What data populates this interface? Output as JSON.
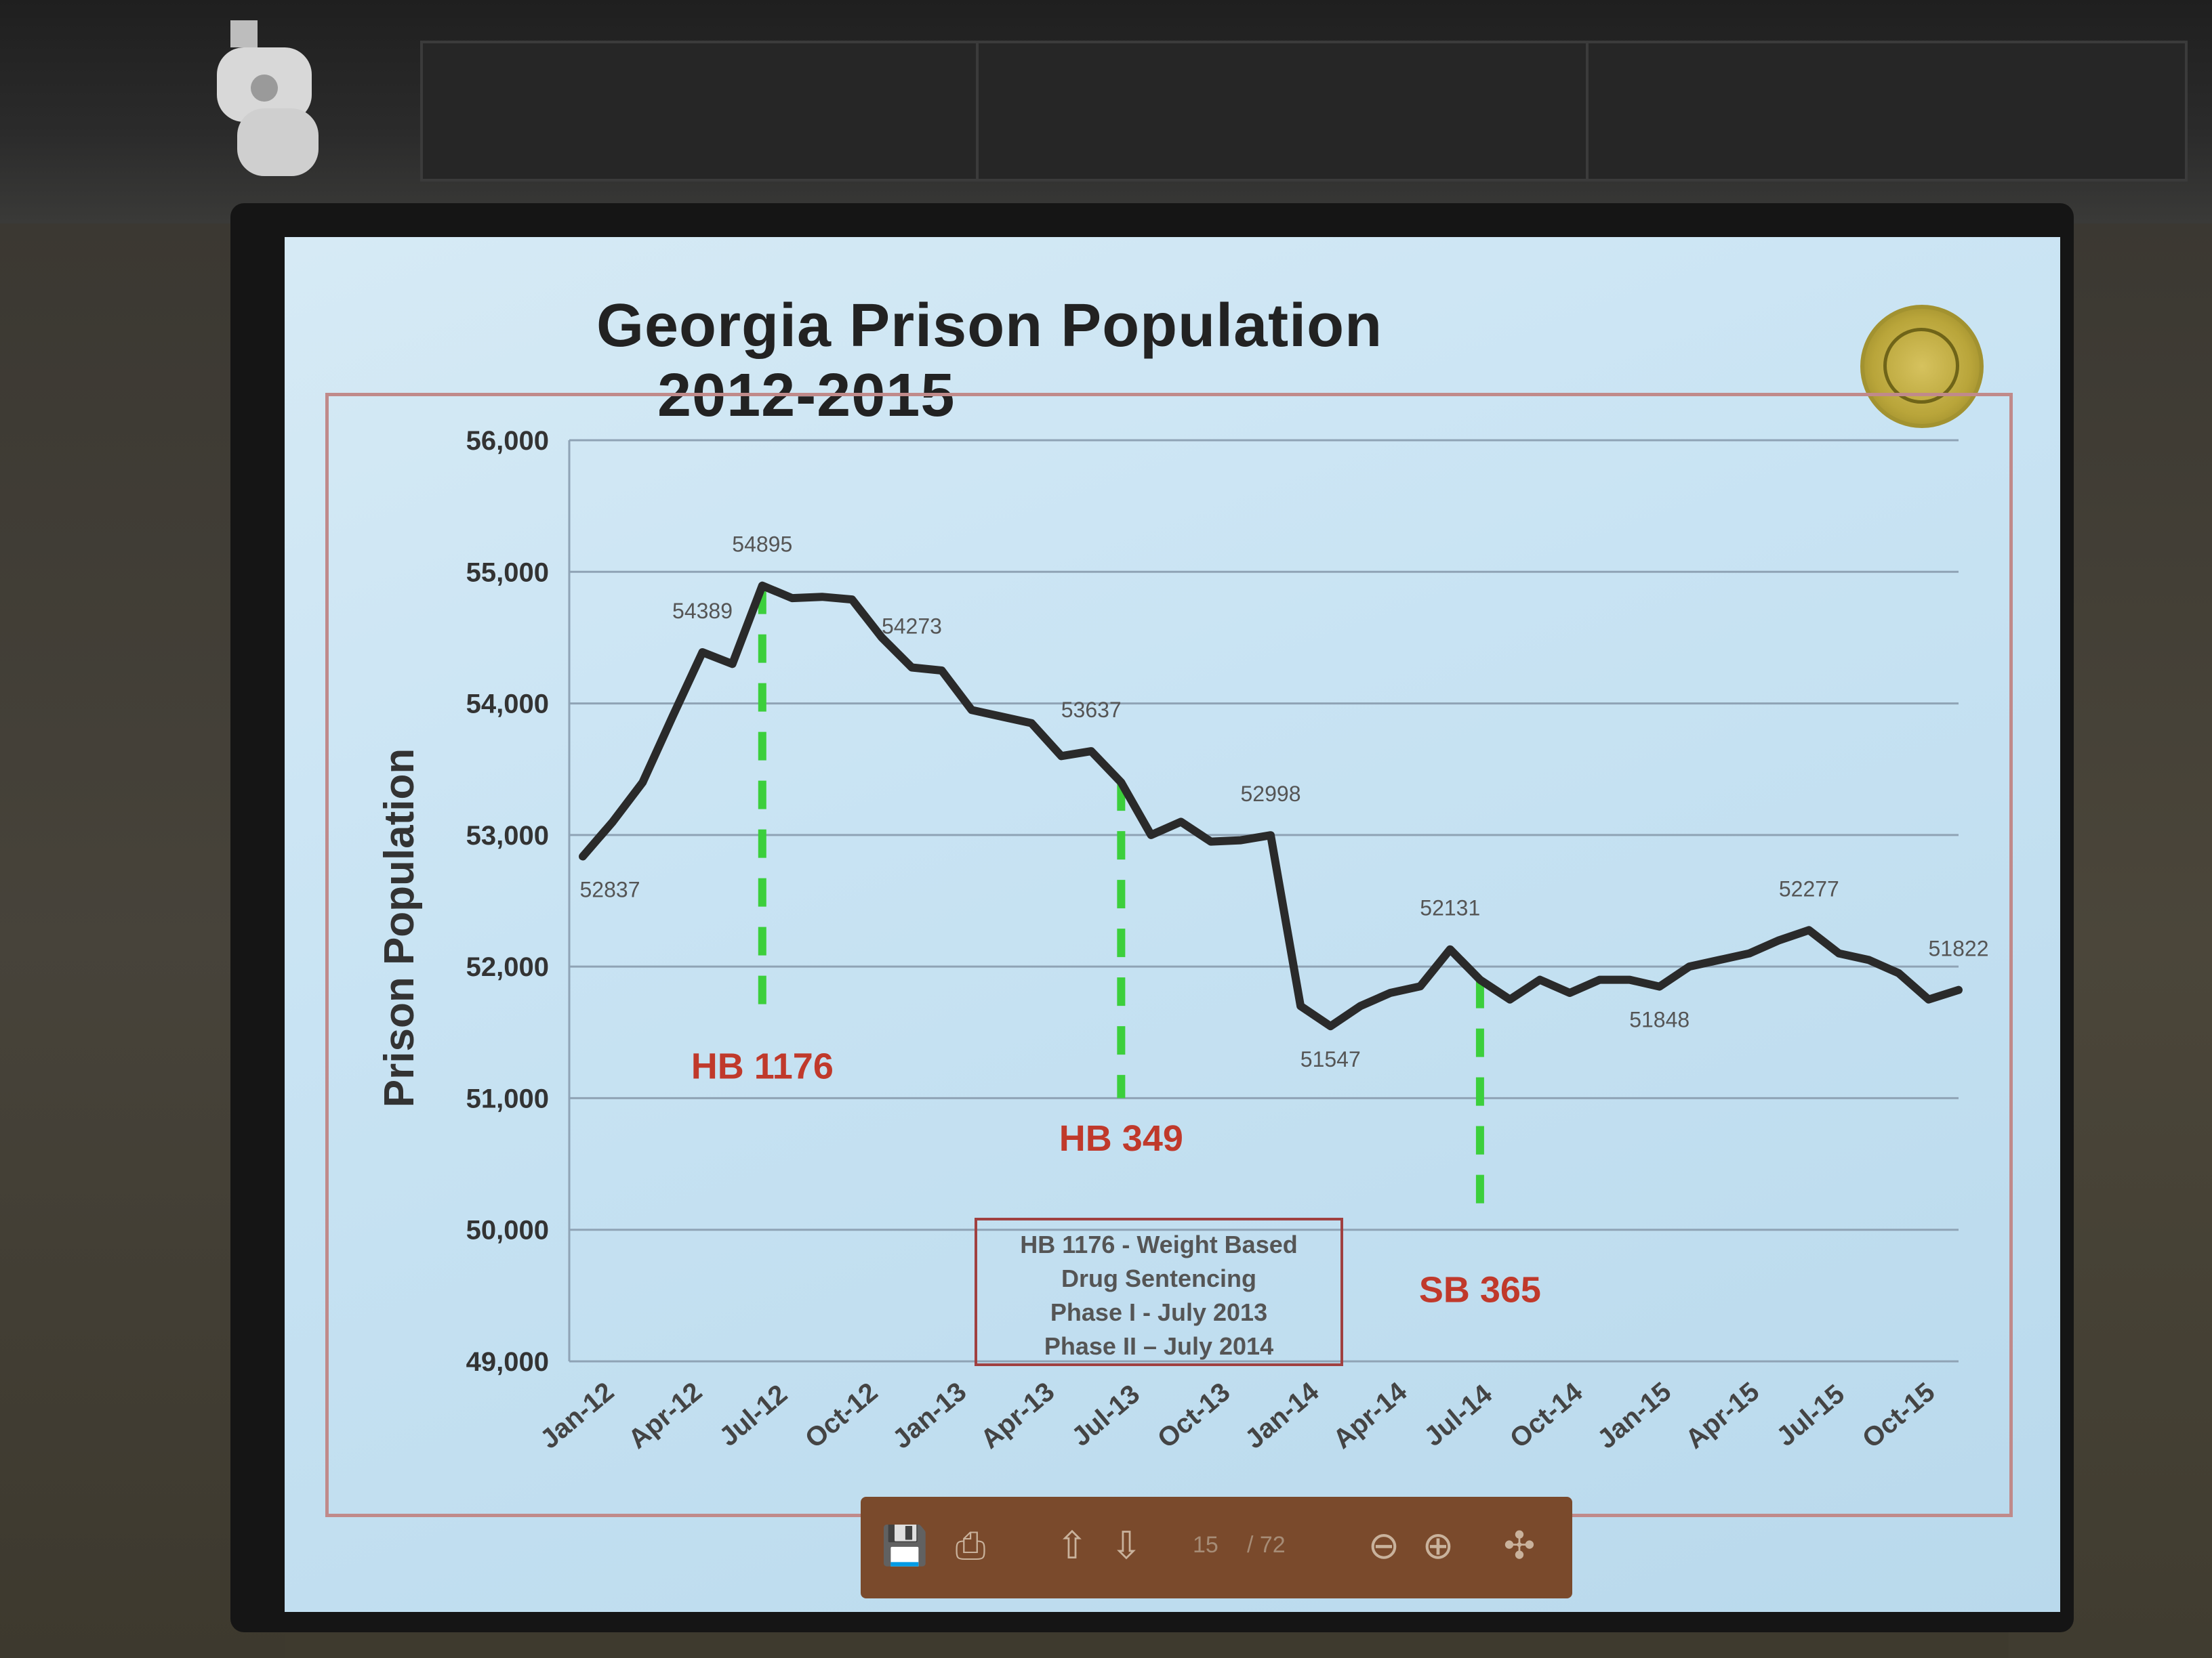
{
  "chart_data": {
    "type": "line",
    "title": "Georgia Prison Population",
    "subtitle": "2012-2015",
    "ylabel": "Prison Population",
    "xlabel": "",
    "ylim": [
      49000,
      56000
    ],
    "yticks": [
      56000,
      55000,
      54000,
      53000,
      52000,
      51000,
      50000,
      49000
    ],
    "ytick_labels": [
      "56,000",
      "55,000",
      "54,000",
      "53,000",
      "52,000",
      "51,000",
      "50,000",
      "49,000"
    ],
    "xtick_labels": [
      "Jan-12",
      "Apr-12",
      "Jul-12",
      "Oct-12",
      "Jan-13",
      "Apr-13",
      "Jul-13",
      "Oct-13",
      "Jan-14",
      "Apr-14",
      "Jul-14",
      "Oct-14",
      "Jan-15",
      "Apr-15",
      "Jul-15",
      "Oct-15"
    ],
    "grid": true,
    "series": [
      {
        "values": [
          52837,
          53100,
          53400,
          53900,
          54389,
          54300,
          54895,
          54800,
          54810,
          54790,
          54500,
          54273,
          54250,
          53950,
          53900,
          53850,
          53600,
          53637,
          53400,
          53000,
          53100,
          52950,
          52960,
          52998,
          51700,
          51547,
          51700,
          51800,
          51850,
          52131,
          51900,
          51750,
          51900,
          51800,
          51900,
          51900,
          51848,
          52000,
          52050,
          52100,
          52200,
          52277,
          52100,
          52050,
          51950,
          51750,
          51822
        ]
      }
    ],
    "point_labels": [
      {
        "index": 0,
        "text": "52837"
      },
      {
        "index": 4,
        "text": "54389"
      },
      {
        "index": 6,
        "text": "54895"
      },
      {
        "index": 11,
        "text": "54273"
      },
      {
        "index": 17,
        "text": "53637"
      },
      {
        "index": 23,
        "text": "52998"
      },
      {
        "index": 25,
        "text": "51547"
      },
      {
        "index": 29,
        "text": "52131"
      },
      {
        "index": 36,
        "text": "51848"
      },
      {
        "index": 41,
        "text": "52277"
      },
      {
        "index": 46,
        "text": "51822"
      }
    ],
    "markers": [
      {
        "label": "HB 1176",
        "index": 6,
        "color": "#c0392b"
      },
      {
        "label": "HB 349",
        "index": 18,
        "color": "#c0392b"
      },
      {
        "label": "SB 365",
        "index": 30,
        "color": "#c0392b"
      }
    ],
    "annotation_box": [
      "HB 1176 - Weight Based",
      "Drug Sentencing",
      "Phase I - July 2013",
      "Phase II – July 2014"
    ],
    "colors": {
      "line": "#2a2a2a",
      "marker_line": "#3ccf3c",
      "marker_label": "#c0392b",
      "grid": "#8fa3b5"
    }
  },
  "toolbar": {
    "page": "15",
    "total": "/ 72",
    "icons": [
      "save-icon",
      "print-icon",
      "page-up-icon",
      "page-down-icon",
      "zoom-out-icon",
      "zoom-in-icon",
      "acrobat-icon"
    ]
  }
}
